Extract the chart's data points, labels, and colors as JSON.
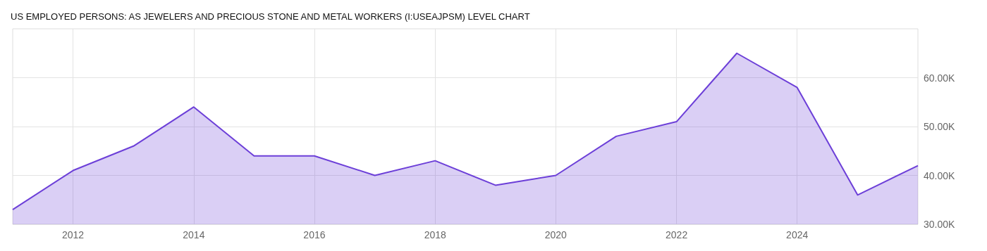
{
  "chart_data": {
    "type": "area",
    "title": "US EMPLOYED PERSONS: AS JEWELERS AND PRECIOUS STONE AND METAL WORKERS (I:USEAJPSM) LEVEL CHART",
    "x": [
      "2011",
      "2012",
      "2013",
      "2014",
      "2015",
      "2016",
      "2017",
      "2018",
      "2019",
      "2020",
      "2021",
      "2022",
      "2023",
      "2024",
      "2025",
      "2026"
    ],
    "series": [
      {
        "color": "#6c3fd8",
        "values": [
          33000,
          41000,
          46000,
          54000,
          44000,
          44000,
          40000,
          43000,
          38000,
          40000,
          48000,
          51000,
          65000,
          58000,
          36000,
          42000
        ]
      }
    ],
    "xlim": [
      "2011",
      "2026"
    ],
    "xticks": [
      "2012",
      "2014",
      "2016",
      "2018",
      "2020",
      "2022",
      "2024"
    ],
    "ylim": [
      30000,
      70000
    ],
    "yticks": [
      {
        "value": 30000,
        "label": "30.00K"
      },
      {
        "value": 40000,
        "label": "40.00K"
      },
      {
        "value": 50000,
        "label": "50.00K"
      },
      {
        "value": 60000,
        "label": "60.00K"
      }
    ],
    "grid": true
  }
}
